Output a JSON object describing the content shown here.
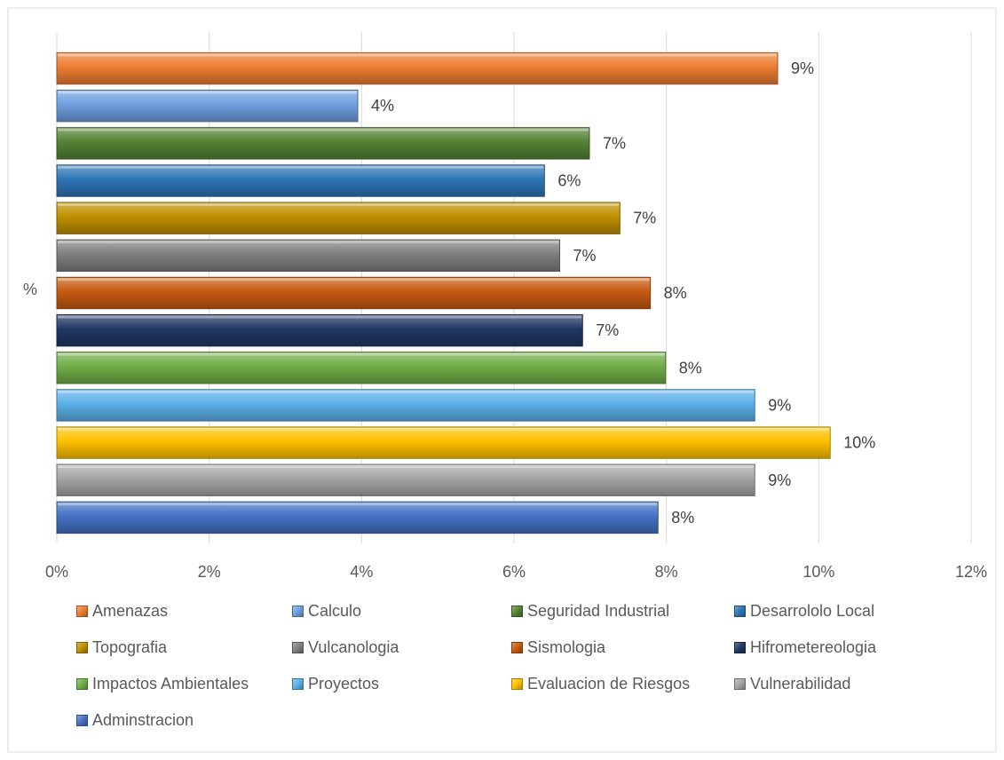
{
  "chart_data": {
    "type": "bar",
    "orientation": "horizontal",
    "title": "",
    "ylabel": "",
    "category_label": "%",
    "xlim": [
      0,
      12
    ],
    "x_ticks": [
      0,
      2,
      4,
      6,
      8,
      10,
      12
    ],
    "x_tick_labels": [
      "0%",
      "2%",
      "4%",
      "6%",
      "8%",
      "10%",
      "12%"
    ],
    "grid": true,
    "legend_position": "bottom",
    "series": [
      {
        "name": "Amenazas",
        "value": 9.46,
        "label": "9%",
        "color": "#ED7D31"
      },
      {
        "name": "Calculo",
        "value": 3.95,
        "label": "4%",
        "color": "#6F9FE0"
      },
      {
        "name": "Seguridad Industrial",
        "value": 6.99,
        "label": "7%",
        "color": "#548235"
      },
      {
        "name": "Desarrololo Local",
        "value": 6.4,
        "label": "6%",
        "color": "#2E75B6"
      },
      {
        "name": "Topografia",
        "value": 7.39,
        "label": "7%",
        "color": "#BF8F00"
      },
      {
        "name": "Vulcanologia",
        "value": 6.6,
        "label": "7%",
        "color": "#7F7F7F"
      },
      {
        "name": "Sismologia",
        "value": 7.79,
        "label": "8%",
        "color": "#C55A11"
      },
      {
        "name": "Hifrometereologia",
        "value": 6.9,
        "label": "7%",
        "color": "#203864"
      },
      {
        "name": "Impactos Ambientales",
        "value": 7.99,
        "label": "8%",
        "color": "#70AD47"
      },
      {
        "name": "Proyectos",
        "value": 9.16,
        "label": "9%",
        "color": "#5BB0E8"
      },
      {
        "name": "Evaluacion de Riesgos",
        "value": 10.15,
        "label": "10%",
        "color": "#FFC000"
      },
      {
        "name": "Vulnerabilidad",
        "value": 9.16,
        "label": "9%",
        "color": "#A5A5A5"
      },
      {
        "name": "Adminstracion",
        "value": 7.89,
        "label": "8%",
        "color": "#4472C4"
      }
    ]
  }
}
